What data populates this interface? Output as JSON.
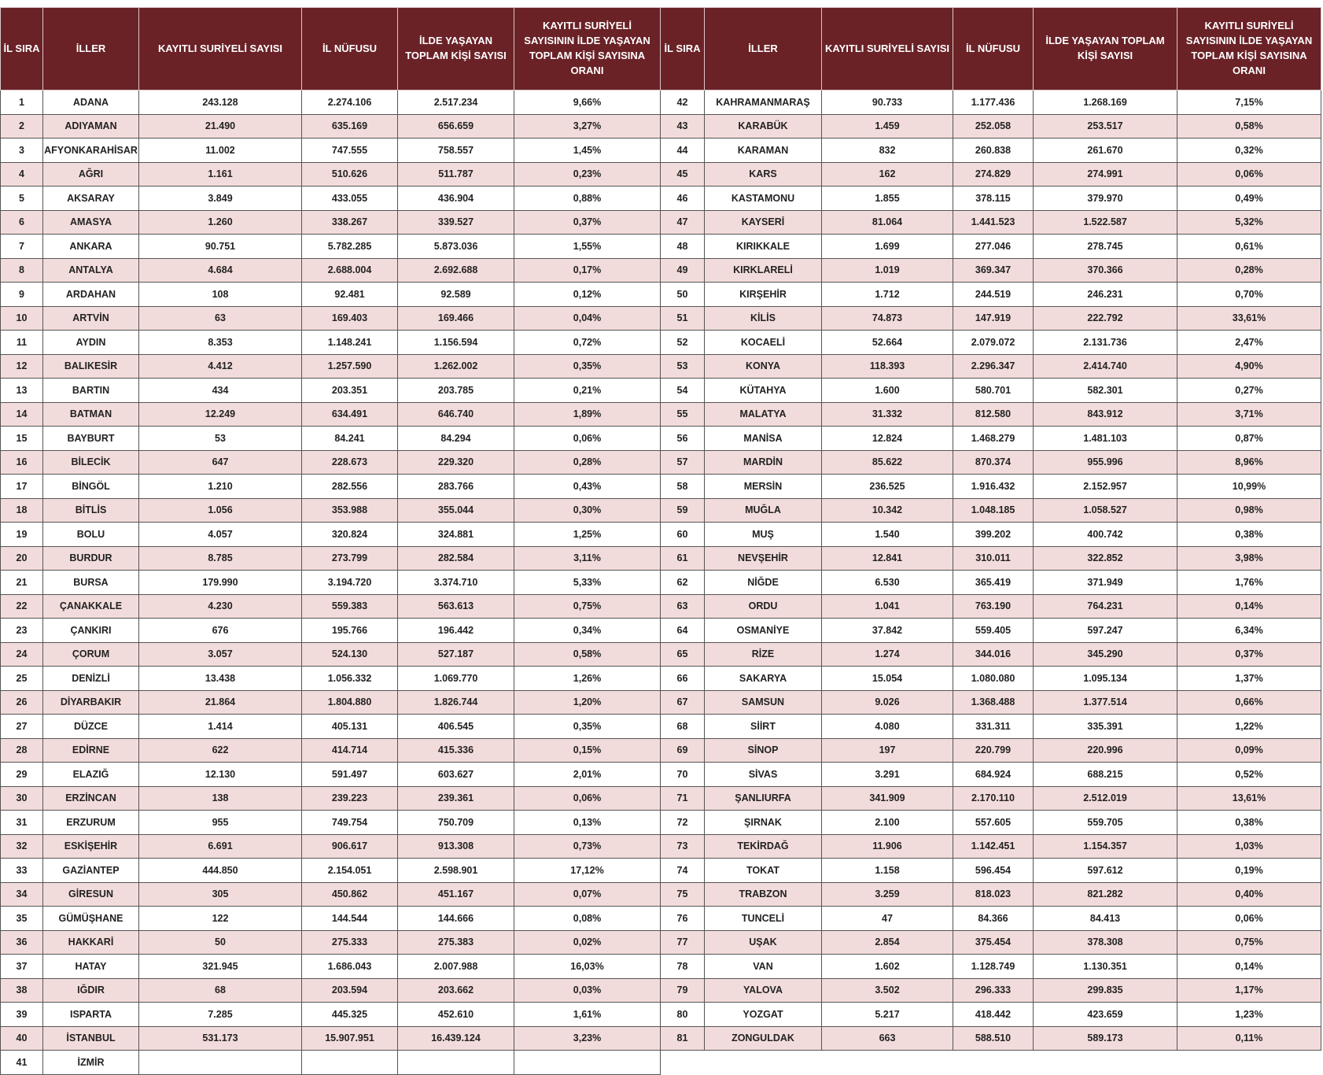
{
  "headers": [
    "İL SIRA",
    "İLLER",
    "KAYITLI SURİYELİ SAYISI",
    "İL NÜFUSU",
    "İLDE YAŞAYAN TOPLAM KİŞİ SAYISI",
    "KAYITLI SURİYELİ SAYISININ İLDE YAŞAYAN TOPLAM KİŞİ SAYISINA ORANI"
  ],
  "colors": {
    "header_bg": "#6a2227",
    "stripe": "#f2dcdb"
  },
  "left_rows": [
    [
      "1",
      "ADANA",
      "243.128",
      "2.274.106",
      "2.517.234",
      "9,66%"
    ],
    [
      "2",
      "ADIYAMAN",
      "21.490",
      "635.169",
      "656.659",
      "3,27%"
    ],
    [
      "3",
      "AFYONKARAHİSAR",
      "11.002",
      "747.555",
      "758.557",
      "1,45%"
    ],
    [
      "4",
      "AĞRI",
      "1.161",
      "510.626",
      "511.787",
      "0,23%"
    ],
    [
      "5",
      "AKSARAY",
      "3.849",
      "433.055",
      "436.904",
      "0,88%"
    ],
    [
      "6",
      "AMASYA",
      "1.260",
      "338.267",
      "339.527",
      "0,37%"
    ],
    [
      "7",
      "ANKARA",
      "90.751",
      "5.782.285",
      "5.873.036",
      "1,55%"
    ],
    [
      "8",
      "ANTALYA",
      "4.684",
      "2.688.004",
      "2.692.688",
      "0,17%"
    ],
    [
      "9",
      "ARDAHAN",
      "108",
      "92.481",
      "92.589",
      "0,12%"
    ],
    [
      "10",
      "ARTVİN",
      "63",
      "169.403",
      "169.466",
      "0,04%"
    ],
    [
      "11",
      "AYDIN",
      "8.353",
      "1.148.241",
      "1.156.594",
      "0,72%"
    ],
    [
      "12",
      "BALIKESİR",
      "4.412",
      "1.257.590",
      "1.262.002",
      "0,35%"
    ],
    [
      "13",
      "BARTIN",
      "434",
      "203.351",
      "203.785",
      "0,21%"
    ],
    [
      "14",
      "BATMAN",
      "12.249",
      "634.491",
      "646.740",
      "1,89%"
    ],
    [
      "15",
      "BAYBURT",
      "53",
      "84.241",
      "84.294",
      "0,06%"
    ],
    [
      "16",
      "BİLECİK",
      "647",
      "228.673",
      "229.320",
      "0,28%"
    ],
    [
      "17",
      "BİNGÖL",
      "1.210",
      "282.556",
      "283.766",
      "0,43%"
    ],
    [
      "18",
      "BİTLİS",
      "1.056",
      "353.988",
      "355.044",
      "0,30%"
    ],
    [
      "19",
      "BOLU",
      "4.057",
      "320.824",
      "324.881",
      "1,25%"
    ],
    [
      "20",
      "BURDUR",
      "8.785",
      "273.799",
      "282.584",
      "3,11%"
    ],
    [
      "21",
      "BURSA",
      "179.990",
      "3.194.720",
      "3.374.710",
      "5,33%"
    ],
    [
      "22",
      "ÇANAKKALE",
      "4.230",
      "559.383",
      "563.613",
      "0,75%"
    ],
    [
      "23",
      "ÇANKIRI",
      "676",
      "195.766",
      "196.442",
      "0,34%"
    ],
    [
      "24",
      "ÇORUM",
      "3.057",
      "524.130",
      "527.187",
      "0,58%"
    ],
    [
      "25",
      "DENİZLİ",
      "13.438",
      "1.056.332",
      "1.069.770",
      "1,26%"
    ],
    [
      "26",
      "DİYARBAKIR",
      "21.864",
      "1.804.880",
      "1.826.744",
      "1,20%"
    ],
    [
      "27",
      "DÜZCE",
      "1.414",
      "405.131",
      "406.545",
      "0,35%"
    ],
    [
      "28",
      "EDİRNE",
      "622",
      "414.714",
      "415.336",
      "0,15%"
    ],
    [
      "29",
      "ELAZIĞ",
      "12.130",
      "591.497",
      "603.627",
      "2,01%"
    ],
    [
      "30",
      "ERZİNCAN",
      "138",
      "239.223",
      "239.361",
      "0,06%"
    ],
    [
      "31",
      "ERZURUM",
      "955",
      "749.754",
      "750.709",
      "0,13%"
    ],
    [
      "32",
      "ESKİŞEHİR",
      "6.691",
      "906.617",
      "913.308",
      "0,73%"
    ],
    [
      "33",
      "GAZİANTEP",
      "444.850",
      "2.154.051",
      "2.598.901",
      "17,12%"
    ],
    [
      "34",
      "GİRESUN",
      "305",
      "450.862",
      "451.167",
      "0,07%"
    ],
    [
      "35",
      "GÜMÜŞHANE",
      "122",
      "144.544",
      "144.666",
      "0,08%"
    ],
    [
      "36",
      "HAKKARİ",
      "50",
      "275.333",
      "275.383",
      "0,02%"
    ],
    [
      "37",
      "HATAY",
      "321.945",
      "1.686.043",
      "2.007.988",
      "16,03%"
    ],
    [
      "38",
      "IĞDIR",
      "68",
      "203.594",
      "203.662",
      "0,03%"
    ],
    [
      "39",
      "ISPARTA",
      "7.285",
      "445.325",
      "452.610",
      "1,61%"
    ],
    [
      "40",
      "İSTANBUL",
      "531.173",
      "15.907.951",
      "16.439.124",
      "3,23%"
    ],
    [
      "41",
      "İZMİR",
      "",
      "",
      "",
      ""
    ]
  ],
  "right_rows": [
    [
      "42",
      "KAHRAMANMARAŞ",
      "90.733",
      "1.177.436",
      "1.268.169",
      "7,15%"
    ],
    [
      "43",
      "KARABÜK",
      "1.459",
      "252.058",
      "253.517",
      "0,58%"
    ],
    [
      "44",
      "KARAMAN",
      "832",
      "260.838",
      "261.670",
      "0,32%"
    ],
    [
      "45",
      "KARS",
      "162",
      "274.829",
      "274.991",
      "0,06%"
    ],
    [
      "46",
      "KASTAMONU",
      "1.855",
      "378.115",
      "379.970",
      "0,49%"
    ],
    [
      "47",
      "KAYSERİ",
      "81.064",
      "1.441.523",
      "1.522.587",
      "5,32%"
    ],
    [
      "48",
      "KIRIKKALE",
      "1.699",
      "277.046",
      "278.745",
      "0,61%"
    ],
    [
      "49",
      "KIRKLARELİ",
      "1.019",
      "369.347",
      "370.366",
      "0,28%"
    ],
    [
      "50",
      "KIRŞEHİR",
      "1.712",
      "244.519",
      "246.231",
      "0,70%"
    ],
    [
      "51",
      "KİLİS",
      "74.873",
      "147.919",
      "222.792",
      "33,61%"
    ],
    [
      "52",
      "KOCAELİ",
      "52.664",
      "2.079.072",
      "2.131.736",
      "2,47%"
    ],
    [
      "53",
      "KONYA",
      "118.393",
      "2.296.347",
      "2.414.740",
      "4,90%"
    ],
    [
      "54",
      "KÜTAHYA",
      "1.600",
      "580.701",
      "582.301",
      "0,27%"
    ],
    [
      "55",
      "MALATYA",
      "31.332",
      "812.580",
      "843.912",
      "3,71%"
    ],
    [
      "56",
      "MANİSA",
      "12.824",
      "1.468.279",
      "1.481.103",
      "0,87%"
    ],
    [
      "57",
      "MARDİN",
      "85.622",
      "870.374",
      "955.996",
      "8,96%"
    ],
    [
      "58",
      "MERSİN",
      "236.525",
      "1.916.432",
      "2.152.957",
      "10,99%"
    ],
    [
      "59",
      "MUĞLA",
      "10.342",
      "1.048.185",
      "1.058.527",
      "0,98%"
    ],
    [
      "60",
      "MUŞ",
      "1.540",
      "399.202",
      "400.742",
      "0,38%"
    ],
    [
      "61",
      "NEVŞEHİR",
      "12.841",
      "310.011",
      "322.852",
      "3,98%"
    ],
    [
      "62",
      "NİĞDE",
      "6.530",
      "365.419",
      "371.949",
      "1,76%"
    ],
    [
      "63",
      "ORDU",
      "1.041",
      "763.190",
      "764.231",
      "0,14%"
    ],
    [
      "64",
      "OSMANİYE",
      "37.842",
      "559.405",
      "597.247",
      "6,34%"
    ],
    [
      "65",
      "RİZE",
      "1.274",
      "344.016",
      "345.290",
      "0,37%"
    ],
    [
      "66",
      "SAKARYA",
      "15.054",
      "1.080.080",
      "1.095.134",
      "1,37%"
    ],
    [
      "67",
      "SAMSUN",
      "9.026",
      "1.368.488",
      "1.377.514",
      "0,66%"
    ],
    [
      "68",
      "SİİRT",
      "4.080",
      "331.311",
      "335.391",
      "1,22%"
    ],
    [
      "69",
      "SİNOP",
      "197",
      "220.799",
      "220.996",
      "0,09%"
    ],
    [
      "70",
      "SİVAS",
      "3.291",
      "684.924",
      "688.215",
      "0,52%"
    ],
    [
      "71",
      "ŞANLIURFA",
      "341.909",
      "2.170.110",
      "2.512.019",
      "13,61%"
    ],
    [
      "72",
      "ŞIRNAK",
      "2.100",
      "557.605",
      "559.705",
      "0,38%"
    ],
    [
      "73",
      "TEKİRDAĞ",
      "11.906",
      "1.142.451",
      "1.154.357",
      "1,03%"
    ],
    [
      "74",
      "TOKAT",
      "1.158",
      "596.454",
      "597.612",
      "0,19%"
    ],
    [
      "75",
      "TRABZON",
      "3.259",
      "818.023",
      "821.282",
      "0,40%"
    ],
    [
      "76",
      "TUNCELİ",
      "47",
      "84.366",
      "84.413",
      "0,06%"
    ],
    [
      "77",
      "UŞAK",
      "2.854",
      "375.454",
      "378.308",
      "0,75%"
    ],
    [
      "78",
      "VAN",
      "1.602",
      "1.128.749",
      "1.130.351",
      "0,14%"
    ],
    [
      "79",
      "YALOVA",
      "3.502",
      "296.333",
      "299.835",
      "1,17%"
    ],
    [
      "80",
      "YOZGAT",
      "5.217",
      "418.442",
      "423.659",
      "1,23%"
    ],
    [
      "81",
      "ZONGULDAK",
      "663",
      "588.510",
      "589.173",
      "0,11%"
    ]
  ]
}
